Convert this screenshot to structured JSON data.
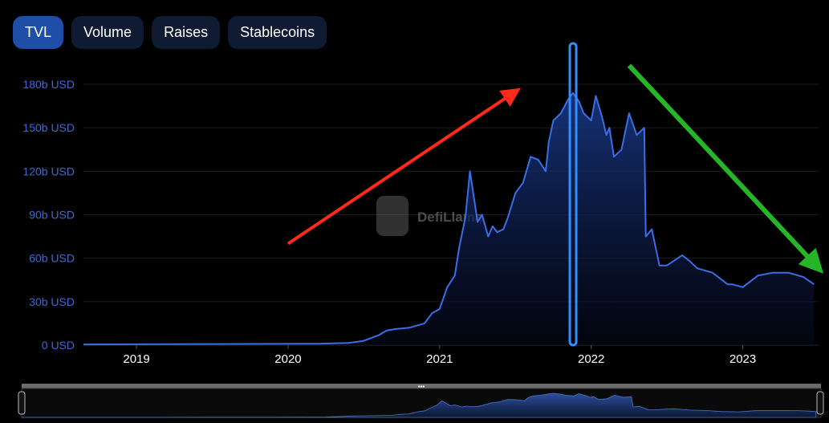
{
  "tabs": [
    {
      "label": "TVL",
      "active": true
    },
    {
      "label": "Volume",
      "active": false
    },
    {
      "label": "Raises",
      "active": false
    },
    {
      "label": "Stablecoins",
      "active": false
    }
  ],
  "watermark": "DefiLlama",
  "colors": {
    "line": "#3b6ee6",
    "highlight": "#2f8fff",
    "arrow_up": "#ff2a1a",
    "arrow_down": "#26b526",
    "tab_active": "#1f4ea6",
    "tab_inactive": "#0f1a33"
  },
  "annotations": [
    {
      "type": "arrow",
      "color": "red",
      "meaning": "upward trend to peak",
      "from": [
        2020.0,
        70
      ],
      "to": [
        2021.5,
        175
      ]
    },
    {
      "type": "arrow",
      "color": "green",
      "meaning": "downward trend after peak",
      "from": [
        2022.25,
        193
      ],
      "to": [
        2023.5,
        53
      ]
    },
    {
      "type": "highlight-box",
      "color": "blue",
      "x": 2021.88
    }
  ],
  "chart_data": {
    "type": "area",
    "title": "",
    "xlabel": "",
    "ylabel": "",
    "grid": true,
    "xlim": [
      2018.65,
      2023.5
    ],
    "ylim": [
      0,
      180
    ],
    "x_ticks": [
      2019,
      2020,
      2021,
      2022,
      2023
    ],
    "x_tick_labels": [
      "2019",
      "2020",
      "2021",
      "2022",
      "2023"
    ],
    "y_ticks": [
      0,
      30,
      60,
      90,
      120,
      150,
      180
    ],
    "y_tick_labels": [
      "0 USD",
      "30b USD",
      "60b USD",
      "90b USD",
      "120b USD",
      "150b USD",
      "180b USD"
    ],
    "series": [
      {
        "x": [
          2018.65,
          2019.0,
          2019.5,
          2019.9,
          2020.2,
          2020.4,
          2020.5,
          2020.6,
          2020.65,
          2020.7,
          2020.8,
          2020.9,
          2020.95,
          2021.0,
          2021.05,
          2021.1,
          2021.13,
          2021.17,
          2021.2,
          2021.25,
          2021.28,
          2021.32,
          2021.35,
          2021.38,
          2021.42,
          2021.45,
          2021.5,
          2021.55,
          2021.6,
          2021.65,
          2021.7,
          2021.72,
          2021.75,
          2021.8,
          2021.85,
          2021.88,
          2021.92,
          2021.95,
          2022.0,
          2022.03,
          2022.07,
          2022.1,
          2022.12,
          2022.15,
          2022.2,
          2022.25,
          2022.3,
          2022.35,
          2022.36,
          2022.4,
          2022.45,
          2022.5,
          2022.6,
          2022.65,
          2022.7,
          2022.8,
          2022.9,
          2022.93,
          2023.0,
          2023.1,
          2023.2,
          2023.3,
          2023.4,
          2023.47
        ],
        "y": [
          0.5,
          0.6,
          0.8,
          0.9,
          1.0,
          1.5,
          3.0,
          7.0,
          10.0,
          11.0,
          12.0,
          15.0,
          22.0,
          25.0,
          40.0,
          48.0,
          68.0,
          88.0,
          120.0,
          85.0,
          90.0,
          75.0,
          82.0,
          78.0,
          80.0,
          88.0,
          105.0,
          112.0,
          130.0,
          128.0,
          120.0,
          140.0,
          155.0,
          160.0,
          170.0,
          174.0,
          168.0,
          160.0,
          155.0,
          172.0,
          158.0,
          145.0,
          150.0,
          130.0,
          135.0,
          160.0,
          145.0,
          150.0,
          75.0,
          80.0,
          55.0,
          55.0,
          62.0,
          58.0,
          53.0,
          50.0,
          42.0,
          42.0,
          40.0,
          48.0,
          50.0,
          50.0,
          47.0,
          42.0
        ]
      }
    ]
  }
}
